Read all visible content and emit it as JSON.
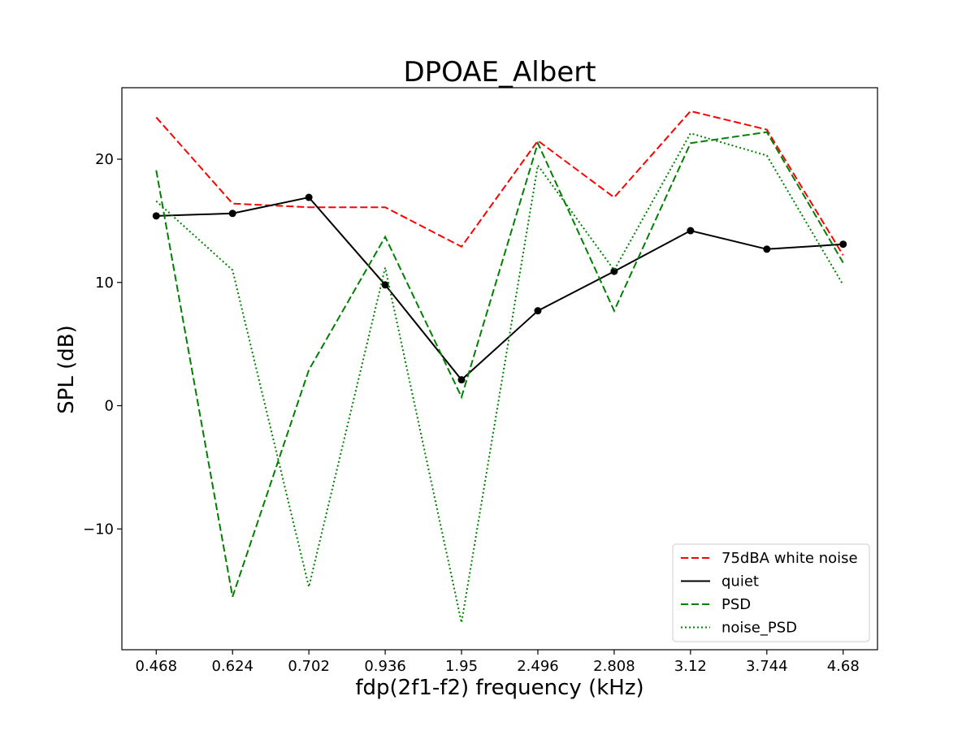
{
  "chart_data": {
    "type": "line",
    "title": "DPOAE_Albert",
    "xlabel": "fdp(2f1-f2) frequency (kHz)",
    "ylabel": "SPL (dB)",
    "categories": [
      "0.468",
      "0.624",
      "0.702",
      "0.936",
      "1.95",
      "2.496",
      "2.808",
      "3.12",
      "3.744",
      "4.68"
    ],
    "ylim": [
      -19.8,
      25.8
    ],
    "yticks": [
      -10,
      0,
      10,
      20
    ],
    "ytick_labels": [
      "−10",
      "0",
      "10",
      "20"
    ],
    "grid": false,
    "legend_position": "bottom-right",
    "series": [
      {
        "name": "75dBA white noise",
        "color": "#ff0000",
        "style": "dashed",
        "marker": "none",
        "values": [
          23.4,
          16.4,
          16.1,
          16.1,
          12.9,
          21.5,
          16.9,
          23.9,
          22.4,
          12.2
        ]
      },
      {
        "name": "quiet",
        "color": "#000000",
        "style": "solid",
        "marker": "circle",
        "values": [
          15.4,
          15.6,
          16.9,
          9.8,
          2.1,
          7.7,
          10.9,
          14.2,
          12.7,
          13.1
        ]
      },
      {
        "name": "PSD",
        "color": "#008000",
        "style": "dashed",
        "marker": "none",
        "values": [
          19.1,
          -15.5,
          2.9,
          13.7,
          0.7,
          21.3,
          7.7,
          21.3,
          22.2,
          11.6
        ]
      },
      {
        "name": "noise_PSD",
        "color": "#008000",
        "style": "dotted",
        "marker": "none",
        "values": [
          16.6,
          11.0,
          -14.7,
          11.2,
          -17.6,
          19.5,
          11.0,
          22.1,
          20.3,
          9.8
        ]
      }
    ]
  }
}
